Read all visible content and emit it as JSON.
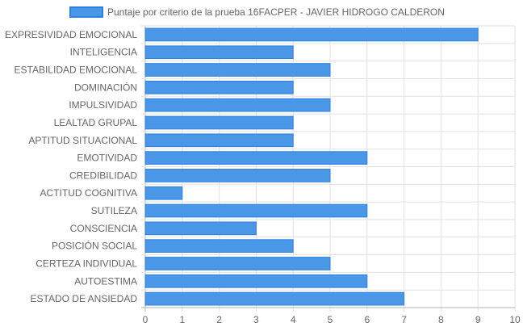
{
  "chart_data": {
    "type": "bar",
    "orientation": "horizontal",
    "categories": [
      "EXPRESIVIDAD EMOCIONAL",
      "INTELIGENCIA",
      "ESTABILIDAD EMOCIONAL",
      "DOMINACIÓN",
      "IMPULSIVIDAD",
      "LEALTAD GRUPAL",
      "APTITUD SITUACIONAL",
      "EMOTIVIDAD",
      "CREDIBILIDAD",
      "ACTITUD COGNITIVA",
      "SUTILEZA",
      "CONSCIENCIA",
      "POSICIÓN SOCIAL",
      "CERTEZA INDIVIDUAL",
      "AUTOESTIMA",
      "ESTADO DE ANSIEDAD"
    ],
    "series": [
      {
        "name": "Puntaje por criterio de la prueba 16FACPER - JAVIER HIDROGO CALDERON",
        "values": [
          9,
          4,
          5,
          4,
          5,
          4,
          4,
          6,
          5,
          1,
          6,
          3,
          4,
          5,
          6,
          7
        ],
        "color": "#4a97e8",
        "border_color": "#2f80e0"
      }
    ],
    "x_ticks": [
      "0",
      "1",
      "2",
      "3",
      "4",
      "5",
      "6",
      "7",
      "8",
      "9",
      "10"
    ],
    "xlim": [
      0,
      10
    ],
    "grid": true,
    "legend_position": "top",
    "title": "",
    "xlabel": "",
    "ylabel": ""
  }
}
